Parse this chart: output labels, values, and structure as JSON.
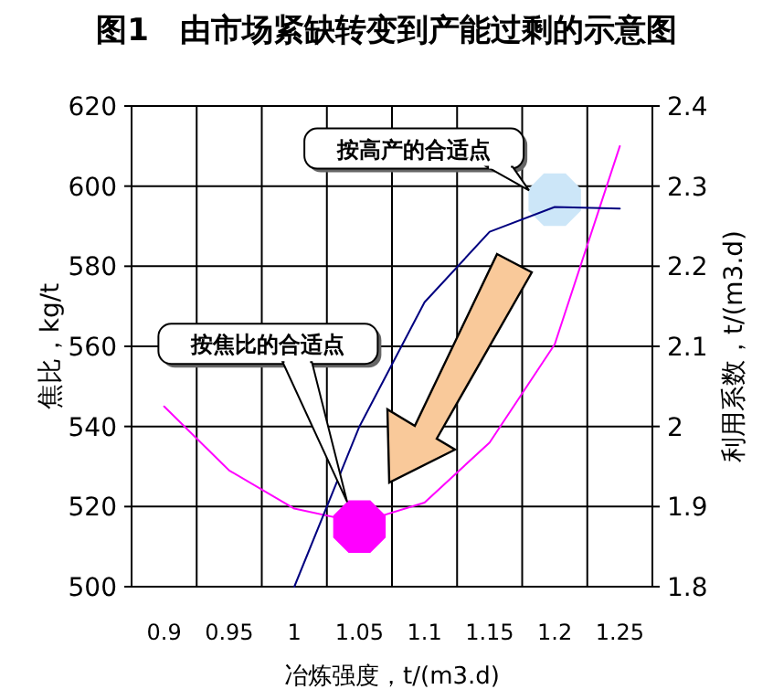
{
  "chart_data": {
    "type": "line",
    "title": "图1　由市场紧缺转变到产能过剩的示意图",
    "xlabel": "冶炼强度，t/(m3.d)",
    "ylabel": "焦比，kg/t",
    "y2label": "利用系数，t/(m3.d)",
    "categories": [
      "0.9",
      "0.95",
      "1",
      "1.05",
      "1.1",
      "1.15",
      "1.2",
      "1.25"
    ],
    "series": [
      {
        "color": "#ff00ff",
        "values": [
          545,
          529,
          519.5,
          516,
          521,
          536,
          560.5,
          610
        ]
      },
      {
        "color": "#000080",
        "axis": "y2",
        "values": [
          null,
          null,
          1.8,
          2.0,
          2.155,
          2.243,
          2.274,
          2.272
        ]
      },
      {
        "type": "scatter",
        "x": [
          "1.05"
        ],
        "color": "#ff00ff",
        "values": [
          515
        ]
      },
      {
        "type": "scatter",
        "x": [
          "1.2"
        ],
        "color": "#cce6f8",
        "axis": "y2",
        "values": [
          2.283
        ]
      }
    ],
    "ylim": [
      500,
      620
    ],
    "yticks": [
      500,
      520,
      540,
      560,
      580,
      600,
      620
    ],
    "y2lim": [
      1.8,
      2.4
    ],
    "y2ticks": [
      1.8,
      1.9,
      2,
      2.1,
      2.2,
      2.3,
      2.4
    ],
    "grid": true,
    "annotations": [
      "按高产的合适点",
      "按焦比的合适点"
    ]
  }
}
